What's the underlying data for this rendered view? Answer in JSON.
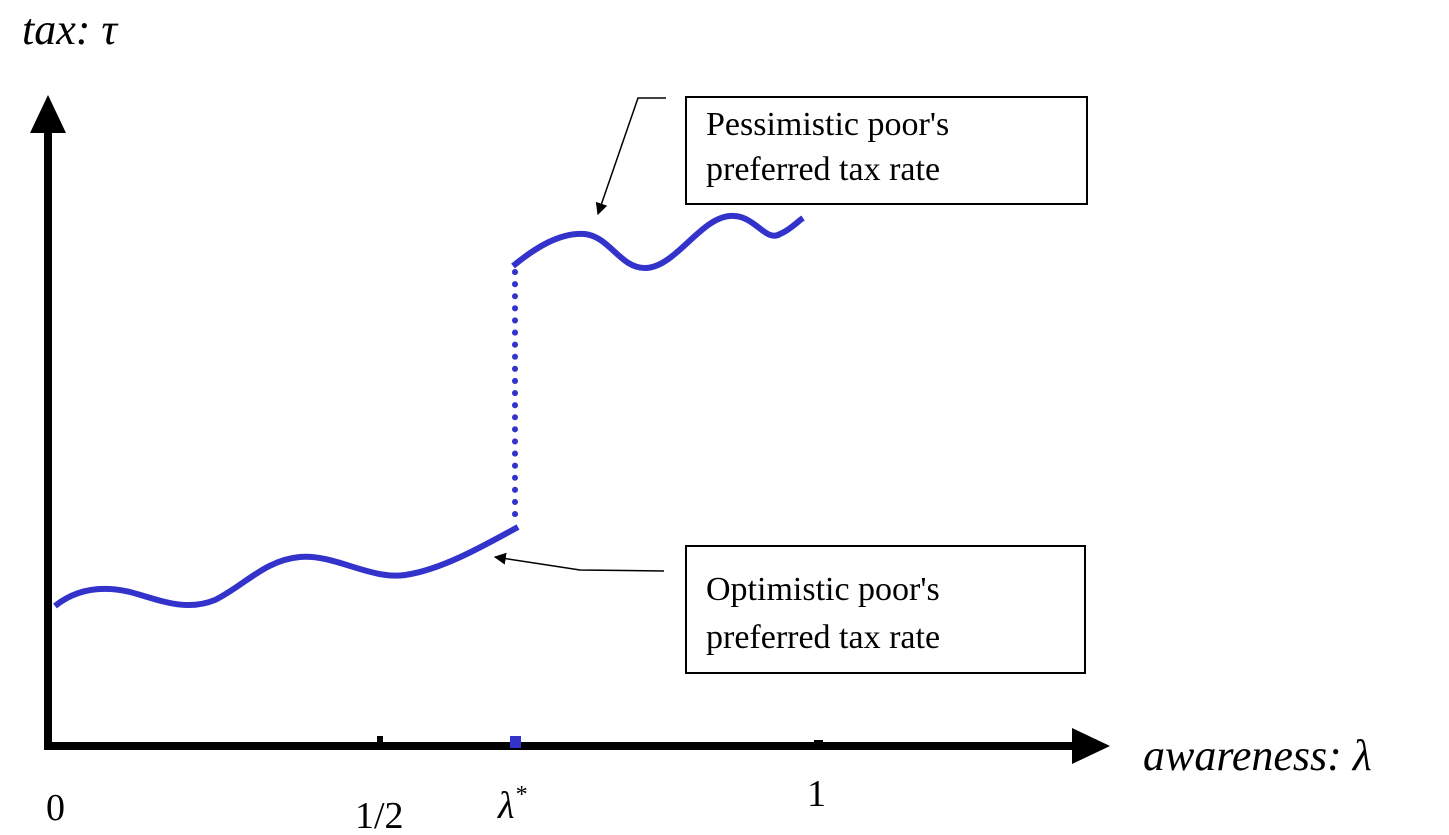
{
  "y_axis_label": "tax: τ",
  "x_axis_label": "awareness: λ",
  "x_labels": {
    "zero": "0",
    "half": "1/2",
    "lambda_star": {
      "base": "λ",
      "sup": "*"
    },
    "one": "1"
  },
  "annotations": [
    {
      "lines": [
        "Pessimistic poor's",
        "preferred tax rate"
      ]
    },
    {
      "lines": [
        "Optimistic poor's",
        "preferred tax rate"
      ]
    }
  ]
}
